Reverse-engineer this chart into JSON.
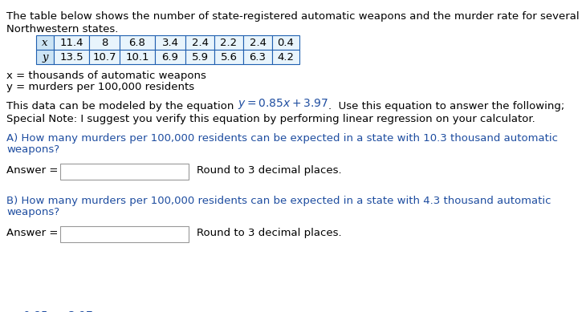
{
  "title_line1": "The table below shows the number of state-registered automatic weapons and the murder rate for several",
  "title_line2": "Northwestern states.",
  "x_values": [
    "11.4",
    "8",
    "6.8",
    "3.4",
    "2.4",
    "2.2",
    "2.4",
    "0.4"
  ],
  "y_values": [
    "13.5",
    "10.7",
    "10.1",
    "6.9",
    "5.9",
    "5.6",
    "6.3",
    "4.2"
  ],
  "x_label_def": "x = thousands of automatic weapons",
  "y_label_def": "y = murders per 100,000 residents",
  "eq_pre": "This data can be modeled by the equation ",
  "eq_math": "$y = 0.85x + 3.97$",
  "eq_post": ".  Use this equation to answer the following;",
  "special_note": "Special Note: I suggest you verify this equation by performing linear regression on your calculator.",
  "q_a_line1": "A) How many murders per 100,000 residents can be expected in a state with 10.3 thousand automatic",
  "q_a_line2": "weapons?",
  "q_b_line1": "B) How many murders per 100,000 residents can be expected in a state with 4.3 thousand automatic",
  "q_b_line2": "weapons?",
  "answer_label": "Answer =",
  "round_note": "Round to 3 decimal places.",
  "bg_color": "#ffffff",
  "black": "#000000",
  "blue": "#1e4da0",
  "table_border": "#2060b0",
  "table_bg_label": "#cce4f5",
  "table_bg_data": "#e8f4fc",
  "font_size": 9.5
}
